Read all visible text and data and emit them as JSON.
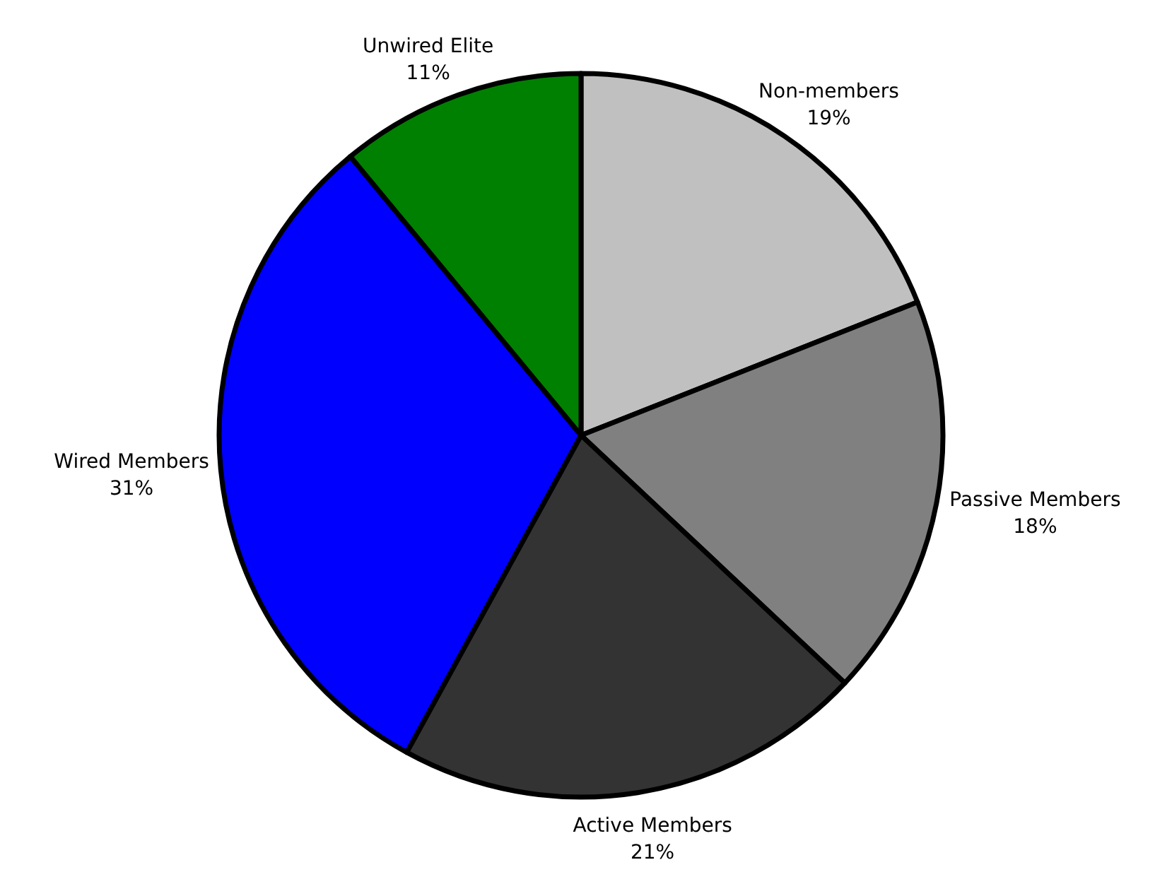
{
  "chart_data": {
    "type": "pie",
    "categories": [
      "Non-members",
      "Passive Members",
      "Active Members",
      "Wired Members",
      "Unwired Elite"
    ],
    "values": [
      19,
      18,
      21,
      31,
      11
    ],
    "colors": [
      "#c0c0c0",
      "#808080",
      "#333333",
      "#0000ff",
      "#008000"
    ],
    "value_labels": [
      "19%",
      "18%",
      "21%",
      "31%",
      "11%"
    ],
    "legend": false
  }
}
